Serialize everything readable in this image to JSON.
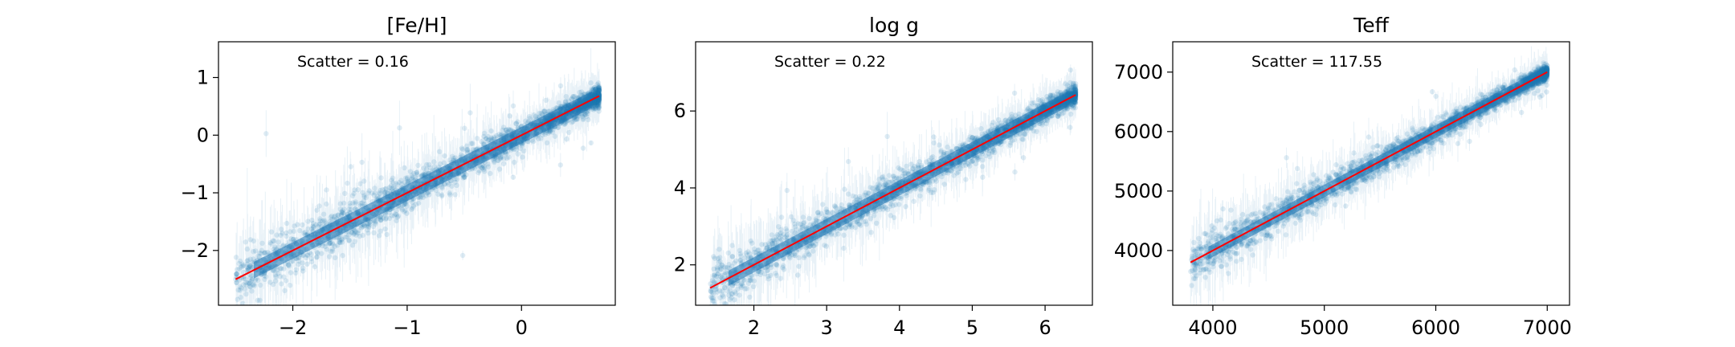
{
  "chart_data": [
    {
      "type": "scatter",
      "title": "[Fe/H]",
      "annotation": "Scatter = 0.16",
      "scatter": 0.16,
      "xlim": [
        -2.65,
        0.82
      ],
      "ylim": [
        -2.95,
        1.62
      ],
      "x_ticks": [
        -2,
        -1,
        0
      ],
      "x_tick_labels": [
        "−2",
        "−1",
        "0"
      ],
      "y_ticks": [
        -2,
        -1,
        0,
        1
      ],
      "y_tick_labels": [
        "−2",
        "−1",
        "0",
        "1"
      ],
      "data_range": [
        -2.5,
        0.68
      ],
      "one_to_one_line": {
        "x": [
          -2.5,
          0.68
        ],
        "y": [
          -2.5,
          0.68
        ]
      },
      "point_color": "#1f77b4",
      "line_color": "#ff0000",
      "grid": false,
      "xlabel": "",
      "ylabel": ""
    },
    {
      "type": "scatter",
      "title": "log g",
      "annotation": "Scatter = 0.22",
      "scatter": 0.22,
      "xlim": [
        1.2,
        6.65
      ],
      "ylim": [
        0.95,
        7.8
      ],
      "x_ticks": [
        2,
        3,
        4,
        5,
        6
      ],
      "x_tick_labels": [
        "2",
        "3",
        "4",
        "5",
        "6"
      ],
      "y_ticks": [
        2,
        4,
        6
      ],
      "y_tick_labels": [
        "2",
        "4",
        "6"
      ],
      "data_range": [
        1.4,
        6.42
      ],
      "one_to_one_line": {
        "x": [
          1.4,
          6.42
        ],
        "y": [
          1.4,
          6.42
        ]
      },
      "point_color": "#1f77b4",
      "line_color": "#ff0000",
      "grid": false,
      "xlabel": "",
      "ylabel": ""
    },
    {
      "type": "scatter",
      "title": "Teff",
      "annotation": "Scatter = 117.55",
      "scatter": 117.55,
      "xlim": [
        3640,
        7200
      ],
      "ylim": [
        3080,
        7510
      ],
      "x_ticks": [
        4000,
        5000,
        6000,
        7000
      ],
      "x_tick_labels": [
        "4000",
        "5000",
        "6000",
        "7000"
      ],
      "y_ticks": [
        4000,
        5000,
        6000,
        7000
      ],
      "y_tick_labels": [
        "4000",
        "5000",
        "6000",
        "7000"
      ],
      "data_range": [
        3800,
        7000
      ],
      "one_to_one_line": {
        "x": [
          3800,
          7000
        ],
        "y": [
          3800,
          7000
        ]
      },
      "point_color": "#1f77b4",
      "line_color": "#ff0000",
      "grid": false,
      "xlabel": "",
      "ylabel": ""
    }
  ]
}
